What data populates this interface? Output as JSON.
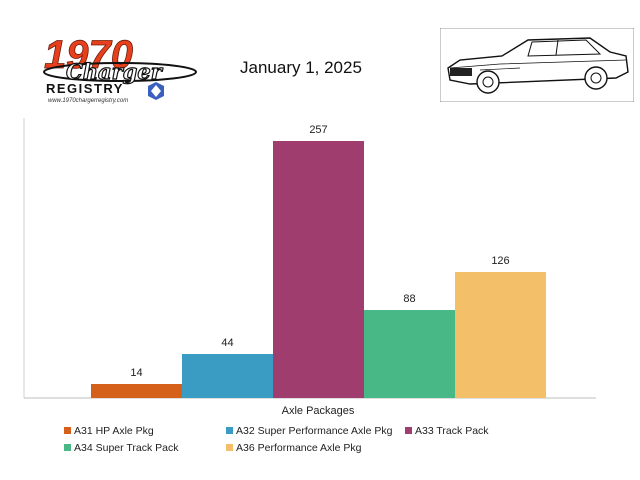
{
  "header": {
    "date": "January 1, 2025",
    "logo": {
      "number": "1970",
      "script": "Charger",
      "word": "REGISTRY",
      "url": "www.1970chargerregistry.com",
      "accent": "#e8401c"
    }
  },
  "chart_data": {
    "type": "bar",
    "xlabel": "Axle Packages",
    "categories": [
      "A31 HP Axle Pkg",
      "A32 Super Performance Axle Pkg",
      "A33 Track Pack",
      "A34 Super Track Pack",
      "A36 Performance Axle Pkg"
    ],
    "values": [
      14,
      44,
      257,
      88,
      126
    ],
    "colors": [
      "#d4601a",
      "#3a9bc3",
      "#9e3d6e",
      "#48b886",
      "#f3bf69"
    ],
    "ylim": [
      0,
      280
    ],
    "grid": false,
    "legend": "bottom",
    "data_labels": true
  }
}
